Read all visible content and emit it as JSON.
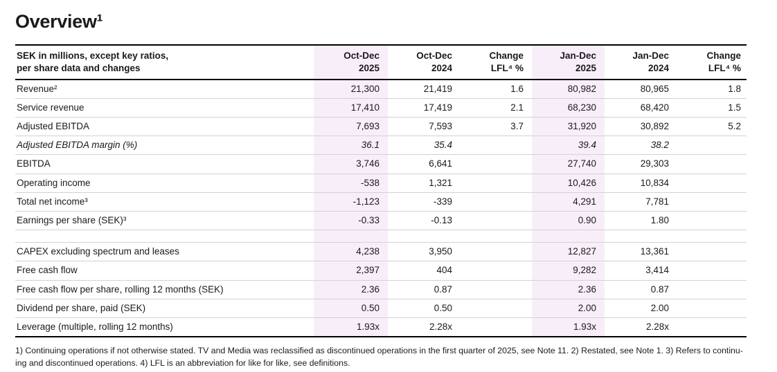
{
  "title": "Overview¹",
  "colors": {
    "highlight": "#f8eef9",
    "text": "#1a1a1a",
    "row_rule": "#d2d2d2"
  },
  "table": {
    "header": {
      "label_line1": "SEK in millions, except key ratios,",
      "label_line2": "per share data and changes",
      "columns": [
        {
          "line1": "Oct-Dec",
          "line2": "2025",
          "highlight": true
        },
        {
          "line1": "Oct-Dec",
          "line2": "2024",
          "highlight": false
        },
        {
          "line1": "Change",
          "line2": "LFL⁴ %",
          "highlight": false
        },
        {
          "line1": "Jan-Dec",
          "line2": "2025",
          "highlight": true
        },
        {
          "line1": "Jan-Dec",
          "line2": "2024",
          "highlight": false
        },
        {
          "line1": "Change",
          "line2": "LFL⁴ %",
          "highlight": false
        }
      ]
    },
    "rows": [
      {
        "label": "Revenue²",
        "italic": false,
        "spacer": false,
        "values": [
          "21,300",
          "21,419",
          "1.6",
          "80,982",
          "80,965",
          "1.8"
        ]
      },
      {
        "label": "Service revenue",
        "italic": false,
        "spacer": false,
        "values": [
          "17,410",
          "17,419",
          "2.1",
          "68,230",
          "68,420",
          "1.5"
        ]
      },
      {
        "label": "Adjusted EBITDA",
        "italic": false,
        "spacer": false,
        "values": [
          "7,693",
          "7,593",
          "3.7",
          "31,920",
          "30,892",
          "5.2"
        ]
      },
      {
        "label": "Adjusted EBITDA margin (%)",
        "italic": true,
        "spacer": false,
        "values": [
          "36.1",
          "35.4",
          "",
          "39.4",
          "38.2",
          ""
        ]
      },
      {
        "label": "EBITDA",
        "italic": false,
        "spacer": false,
        "values": [
          "3,746",
          "6,641",
          "",
          "27,740",
          "29,303",
          ""
        ]
      },
      {
        "label": "Operating income",
        "italic": false,
        "spacer": false,
        "values": [
          "-538",
          "1,321",
          "",
          "10,426",
          "10,834",
          ""
        ]
      },
      {
        "label": "Total net income³",
        "italic": false,
        "spacer": false,
        "values": [
          "-1,123",
          "-339",
          "",
          "4,291",
          "7,781",
          ""
        ]
      },
      {
        "label": "Earnings per share (SEK)³",
        "italic": false,
        "spacer": false,
        "values": [
          "-0.33",
          "-0.13",
          "",
          "0.90",
          "1.80",
          ""
        ]
      },
      {
        "label": "",
        "italic": false,
        "spacer": true,
        "values": [
          "",
          "",
          "",
          "",
          "",
          ""
        ]
      },
      {
        "label": "CAPEX excluding spectrum and leases",
        "italic": false,
        "spacer": false,
        "values": [
          "4,238",
          "3,950",
          "",
          "12,827",
          "13,361",
          ""
        ]
      },
      {
        "label": "Free cash flow",
        "italic": false,
        "spacer": false,
        "values": [
          "2,397",
          "404",
          "",
          "9,282",
          "3,414",
          ""
        ]
      },
      {
        "label": "Free cash flow per share, rolling 12 months (SEK)",
        "italic": false,
        "spacer": false,
        "values": [
          "2.36",
          "0.87",
          "",
          "2.36",
          "0.87",
          ""
        ]
      },
      {
        "label": "Dividend per share, paid (SEK)",
        "italic": false,
        "spacer": false,
        "values": [
          "0.50",
          "0.50",
          "",
          "2.00",
          "2.00",
          ""
        ]
      },
      {
        "label": "Leverage (multiple, rolling 12 months)",
        "italic": false,
        "spacer": false,
        "values": [
          "1.93x",
          "2.28x",
          "",
          "1.93x",
          "2.28x",
          ""
        ]
      }
    ]
  },
  "footnote_lines": [
    "1) Continuing operations if not otherwise stated. TV and Media was reclassified as discontinued operations in the first quarter of 2025, see Note 11. 2) Restated, see Note 1. 3) Refers to continu-",
    "ing and discontinued operations. 4) LFL is an abbreviation for like for like, see definitions."
  ]
}
